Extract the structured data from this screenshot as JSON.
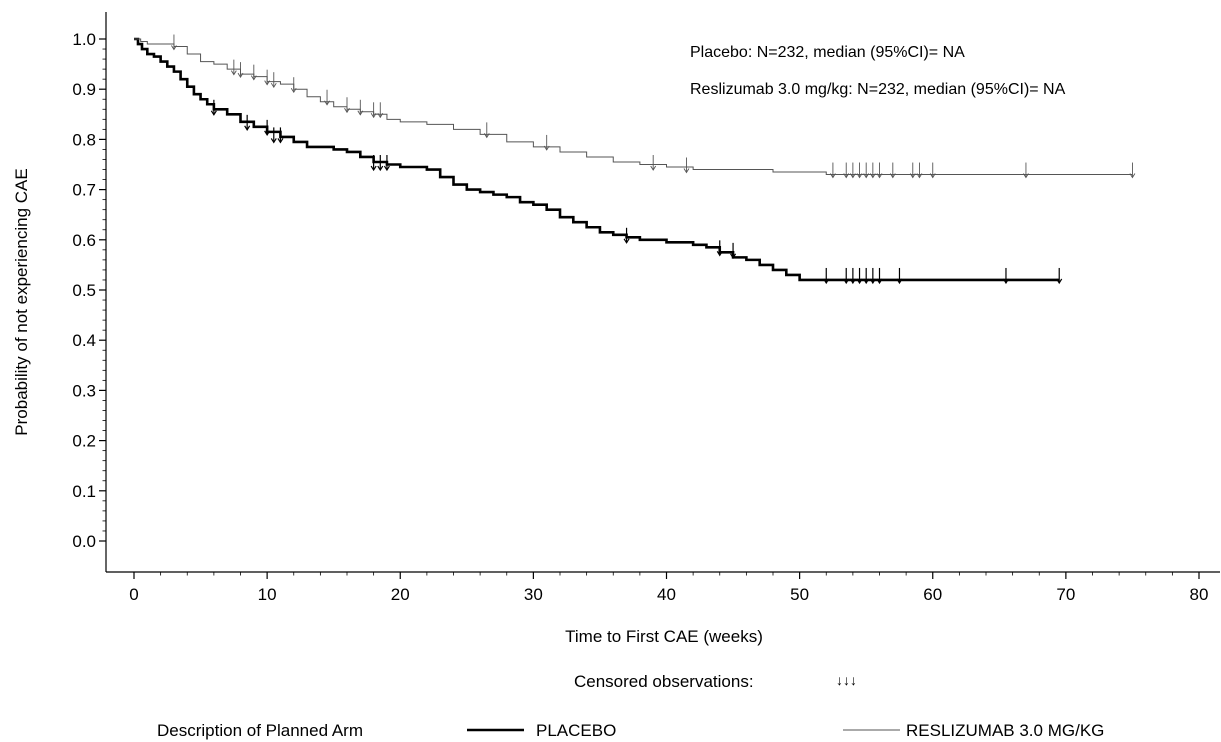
{
  "chart_data": {
    "type": "line",
    "subtype": "kaplan-meier step curve",
    "xlabel": "Time to First CAE (weeks)",
    "ylabel": "Probability of not experiencing CAE",
    "xlim": [
      0,
      80
    ],
    "ylim": [
      0,
      1.0
    ],
    "x_ticks": [
      "0",
      "10",
      "20",
      "30",
      "40",
      "50",
      "60",
      "70",
      "80"
    ],
    "y_ticks": [
      "0.0",
      "0.1",
      "0.2",
      "0.3",
      "0.4",
      "0.5",
      "0.6",
      "0.7",
      "0.8",
      "0.9",
      "1.0"
    ],
    "grid": false,
    "annotations": [
      "Placebo: N=232, median (95%CI)= NA",
      "Reslizumab 3.0 mg/kg: N=232, median (95%CI)= NA"
    ],
    "censor_note": {
      "label": "Censored observations:",
      "symbol": "↓↓↓"
    },
    "legend": {
      "position": "bottom",
      "title": "Description of Planned Arm"
    },
    "series": [
      {
        "name": "PLACEBO",
        "style": "thick",
        "color": "#000000",
        "x": [
          0,
          0.3,
          0.6,
          1,
          1.5,
          2,
          2.5,
          3,
          3.5,
          4,
          4.5,
          5,
          5.5,
          6,
          7,
          8,
          9,
          10,
          11,
          12,
          13,
          14,
          15,
          16,
          17,
          18,
          19,
          20,
          21,
          22,
          23,
          24,
          25,
          26,
          27,
          28,
          29,
          30,
          31,
          32,
          33,
          34,
          35,
          36,
          37,
          38,
          39,
          40,
          41,
          42,
          43,
          44,
          45,
          46,
          47,
          48,
          49,
          50,
          51,
          55,
          60,
          65,
          69.5
        ],
        "y": [
          1.0,
          0.99,
          0.98,
          0.97,
          0.965,
          0.955,
          0.945,
          0.935,
          0.92,
          0.905,
          0.89,
          0.88,
          0.87,
          0.86,
          0.85,
          0.835,
          0.825,
          0.815,
          0.805,
          0.795,
          0.785,
          0.785,
          0.78,
          0.775,
          0.765,
          0.755,
          0.75,
          0.745,
          0.745,
          0.74,
          0.725,
          0.71,
          0.7,
          0.695,
          0.69,
          0.685,
          0.675,
          0.67,
          0.66,
          0.645,
          0.635,
          0.625,
          0.615,
          0.61,
          0.605,
          0.6,
          0.6,
          0.595,
          0.595,
          0.59,
          0.585,
          0.575,
          0.565,
          0.56,
          0.55,
          0.54,
          0.53,
          0.52,
          0.52,
          0.52,
          0.52,
          0.52,
          0.52
        ],
        "censored_x": [
          6,
          8.5,
          10,
          10.5,
          11,
          18,
          18.5,
          19,
          37,
          44,
          45,
          52,
          53.5,
          54,
          54.5,
          55,
          55.5,
          56,
          57.5,
          65.5,
          69.5
        ],
        "censored_y": [
          0.855,
          0.825,
          0.815,
          0.8,
          0.8,
          0.745,
          0.745,
          0.745,
          0.6,
          0.575,
          0.57,
          0.52,
          0.52,
          0.52,
          0.52,
          0.52,
          0.52,
          0.52,
          0.52,
          0.52,
          0.52
        ]
      },
      {
        "name": "RESLIZUMAB 3.0 MG/KG",
        "style": "thin",
        "color": "#555555",
        "x": [
          0,
          0.5,
          1,
          2,
          3,
          4,
          5,
          6,
          7,
          8,
          9,
          10,
          11,
          12,
          13,
          14,
          15,
          16,
          17,
          18,
          19,
          20,
          22,
          24,
          26,
          28,
          30,
          32,
          34,
          36,
          38,
          40,
          42,
          45,
          48,
          50,
          52,
          55,
          60,
          65,
          70,
          75
        ],
        "y": [
          1.0,
          0.995,
          0.99,
          0.99,
          0.985,
          0.97,
          0.955,
          0.95,
          0.94,
          0.93,
          0.925,
          0.915,
          0.91,
          0.9,
          0.885,
          0.875,
          0.865,
          0.86,
          0.855,
          0.85,
          0.84,
          0.835,
          0.83,
          0.82,
          0.81,
          0.795,
          0.785,
          0.775,
          0.765,
          0.755,
          0.75,
          0.745,
          0.74,
          0.74,
          0.735,
          0.735,
          0.73,
          0.73,
          0.73,
          0.73,
          0.73,
          0.73
        ],
        "censored_x": [
          3,
          7.5,
          8,
          9,
          10,
          10.5,
          12,
          14.5,
          16,
          17,
          18,
          18.5,
          26.5,
          31,
          39,
          41.5,
          52.5,
          53.5,
          54,
          54.5,
          55,
          55.5,
          56,
          57,
          58.5,
          59,
          60,
          67,
          75
        ],
        "censored_y": [
          0.985,
          0.935,
          0.93,
          0.925,
          0.915,
          0.91,
          0.9,
          0.875,
          0.86,
          0.855,
          0.85,
          0.85,
          0.81,
          0.785,
          0.745,
          0.74,
          0.73,
          0.73,
          0.73,
          0.73,
          0.73,
          0.73,
          0.73,
          0.73,
          0.73,
          0.73,
          0.73,
          0.73,
          0.73
        ]
      }
    ]
  }
}
